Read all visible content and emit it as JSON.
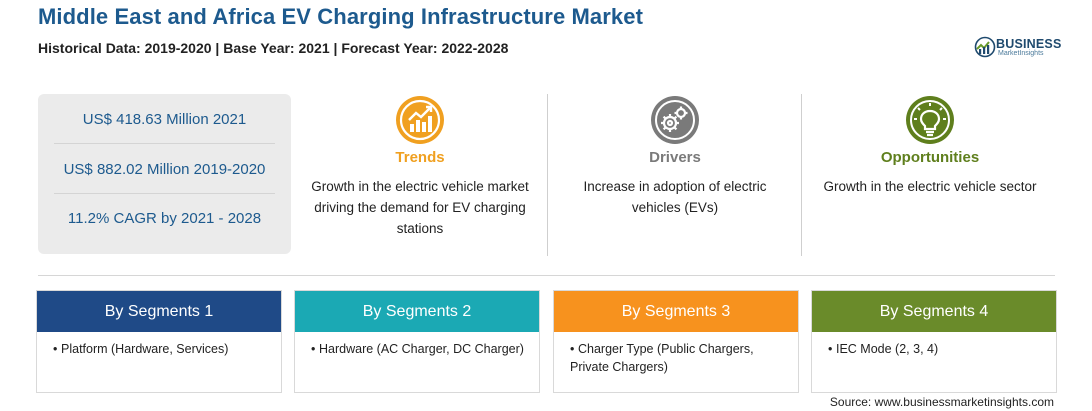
{
  "header": {
    "title": "Middle East and Africa EV Charging Infrastructure Market",
    "subtitle": "Historical Data: 2019-2020 | Base Year: 2021 | Forecast Year: 2022-2028"
  },
  "logo": {
    "name": "BUSINESS",
    "tagline": "MarketInsights"
  },
  "stats": [
    "US$ 418.63 Million 2021",
    "US$ 882.02 Million 2019-2020",
    "11.2% CAGR by 2021 - 2028"
  ],
  "columns": [
    {
      "title": "Trends",
      "text": "Growth in the electric vehicle market driving the demand for EV charging stations",
      "color": "#f0a020",
      "icon": "trend-chart-icon"
    },
    {
      "title": "Drivers",
      "text": "Increase in adoption of electric vehicles (EVs)",
      "color": "#7a7a7a",
      "icon": "gears-icon"
    },
    {
      "title": "Opportunities",
      "text": "Growth in the electric vehicle sector",
      "color": "#5f7f1d",
      "icon": "lightbulb-icon"
    }
  ],
  "segments": [
    {
      "title": "By Segments 1",
      "color": "#1f4a87",
      "item": "Platform (Hardware, Services)"
    },
    {
      "title": "By Segments 2",
      "color": "#1ba9b4",
      "item": "Hardware (AC Charger, DC Charger)"
    },
    {
      "title": "By Segments 3",
      "color": "#f7921e",
      "item": "Charger Type (Public Chargers, Private Chargers)"
    },
    {
      "title": "By Segments 4",
      "color": "#6a8b2a",
      "item": "IEC Mode (2, 3, 4)"
    }
  ],
  "bullet": "•",
  "source": "Source: www.businessmarketinsights.com"
}
